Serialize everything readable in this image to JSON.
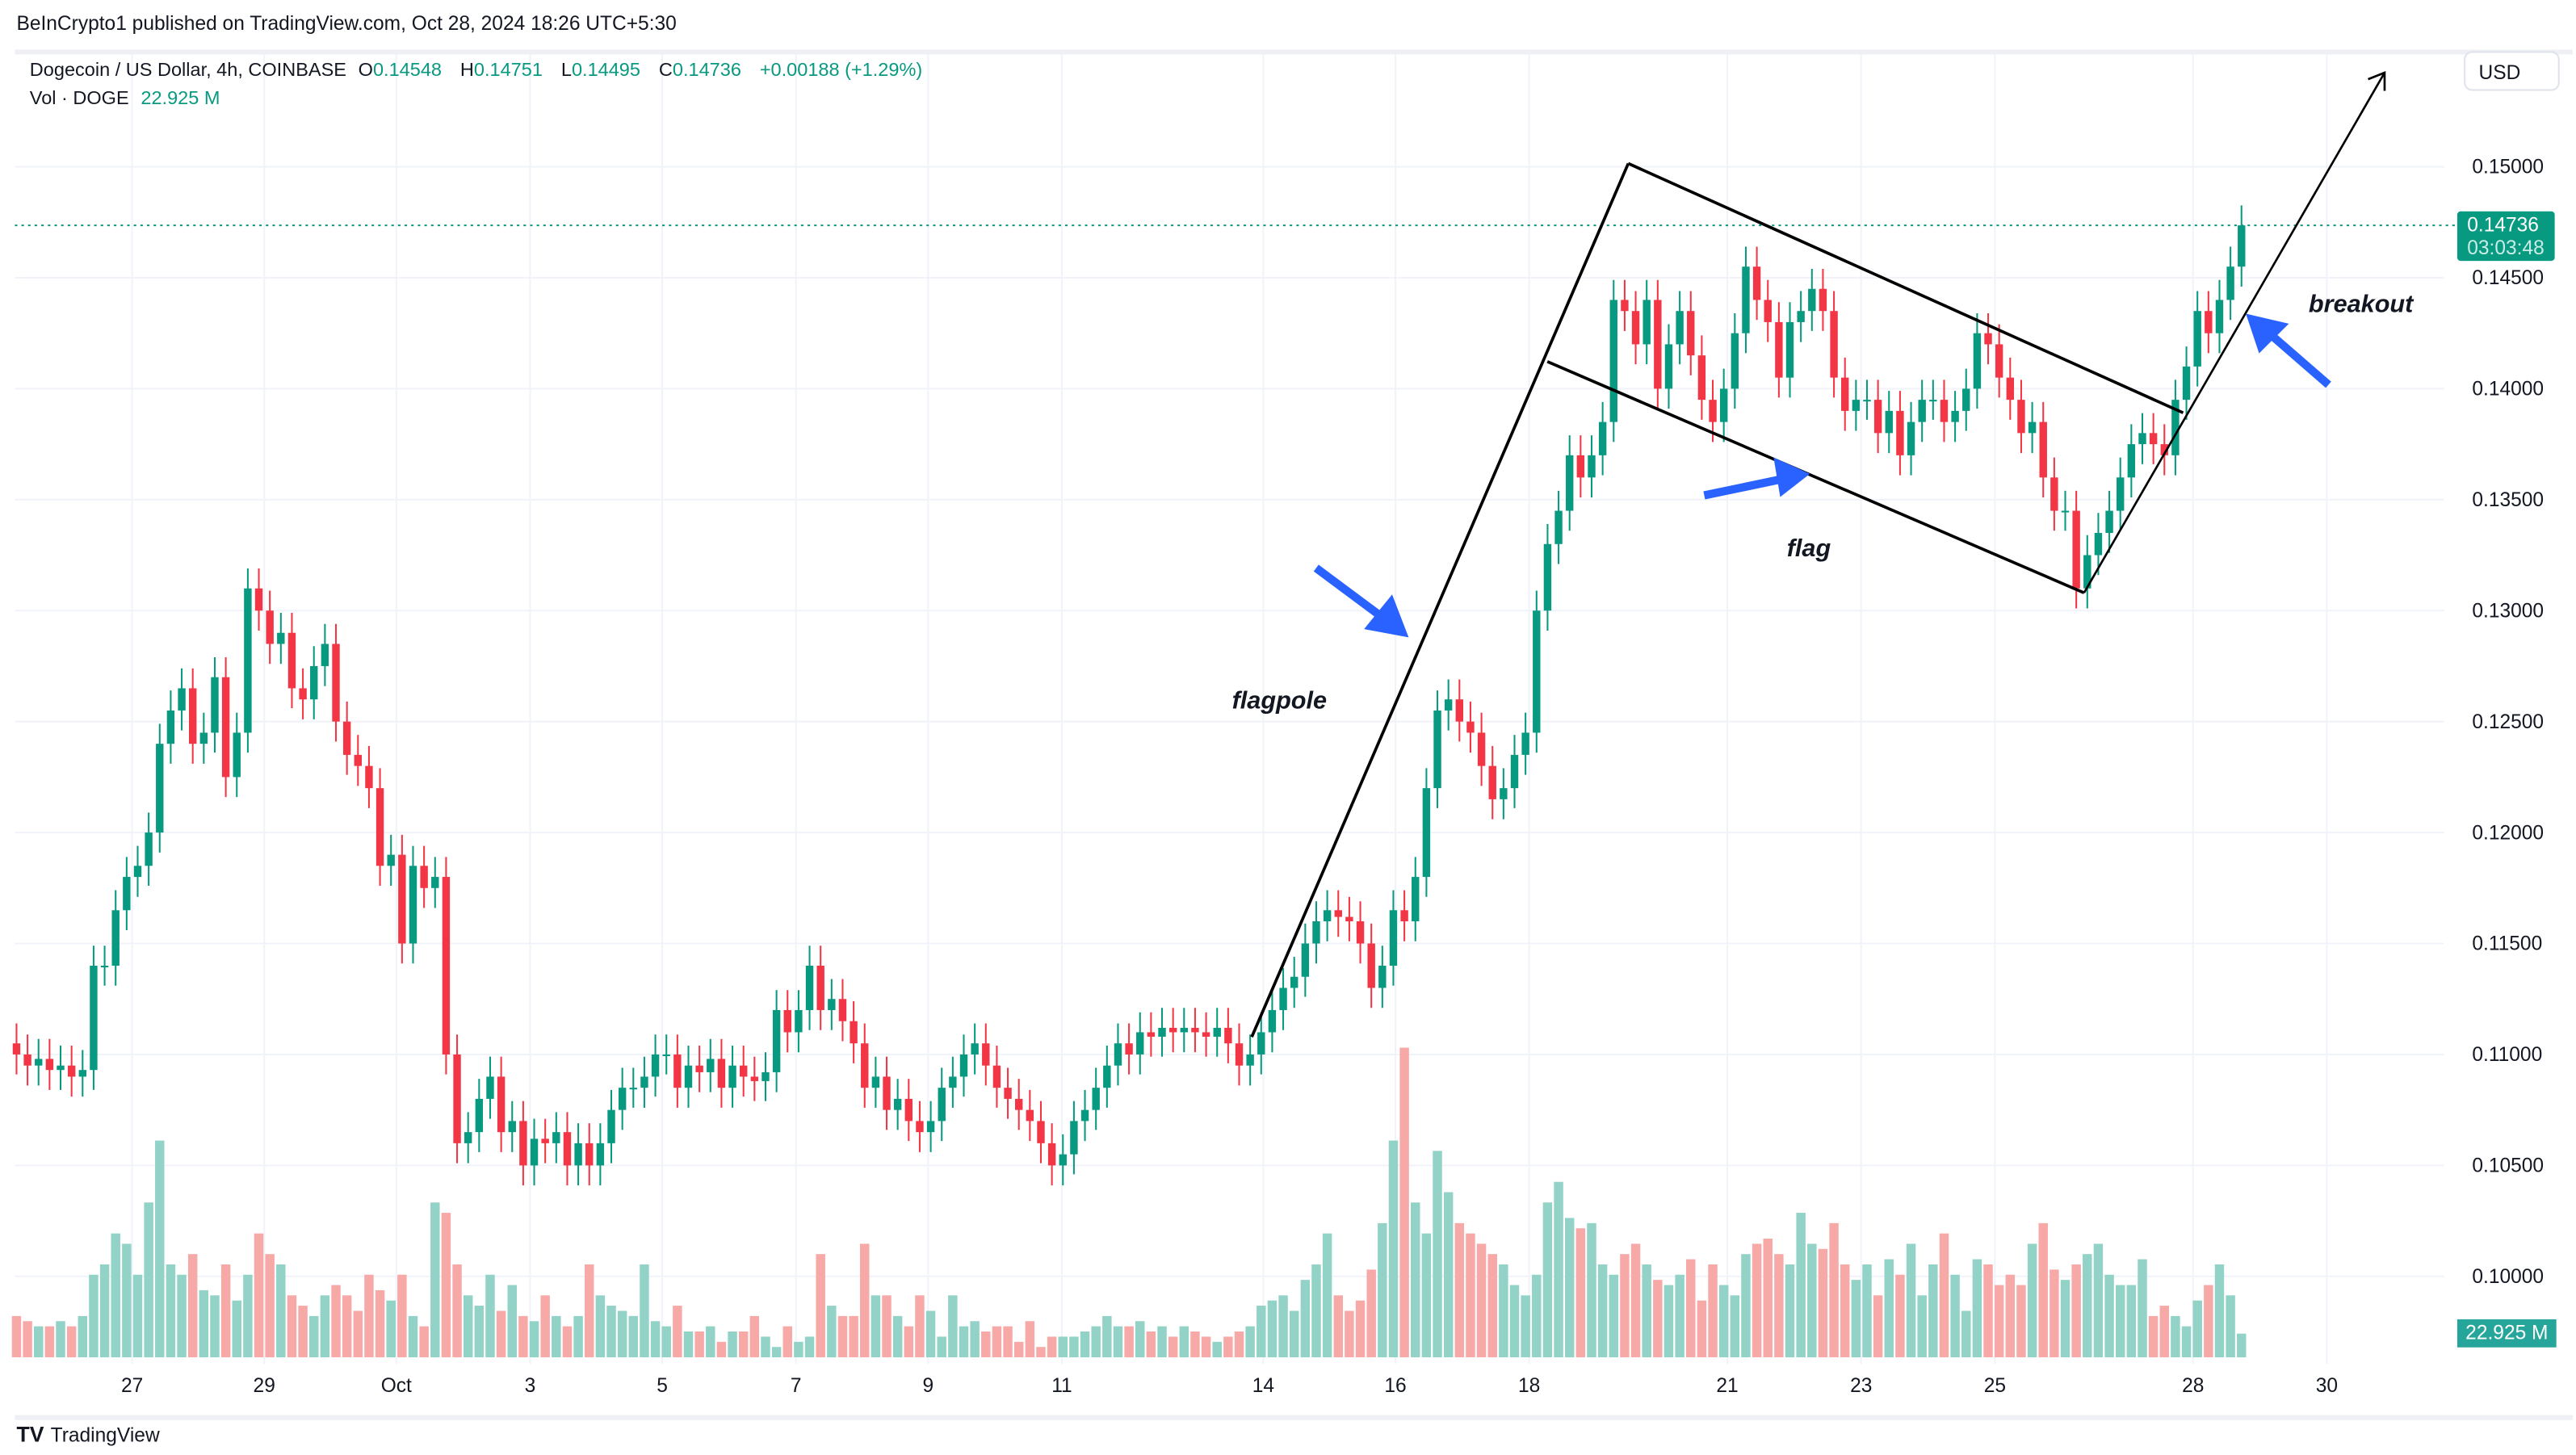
{
  "header": {
    "published": "BeInCrypto1 published on TradingView.com, Oct 28, 2024 18:26 UTC+5:30"
  },
  "legend": {
    "symbol": "Dogecoin / US Dollar, 4h, COINBASE",
    "o_label": "O",
    "o": "0.14548",
    "h_label": "H",
    "h": "0.14751",
    "l_label": "L",
    "l": "0.14495",
    "c_label": "C",
    "c": "0.14736",
    "change": "+0.00188 (+1.29%)",
    "vol_label": "Vol · DOGE",
    "vol": "22.925 M"
  },
  "price_axis": {
    "currency": "USD",
    "last_price": "0.14736",
    "countdown": "03:03:48",
    "volume_tag": "22.925 M"
  },
  "footer": {
    "brand": "TradingView"
  },
  "annotations": {
    "flagpole": "flagpole",
    "flag": "flag",
    "breakout": "breakout"
  },
  "colors": {
    "up": "#089981",
    "down": "#f23645",
    "vol_up": "#92d2c7",
    "vol_down": "#f7a9a7",
    "arrow": "#2962ff"
  },
  "chart_data": {
    "type": "candlestick",
    "interval": "4h",
    "ylim": [
      0.1,
      0.15
    ],
    "y_ticks": [
      "0.15000",
      "0.14500",
      "0.14000",
      "0.13500",
      "0.13000",
      "0.12500",
      "0.12000",
      "0.11500",
      "0.11000",
      "0.10500",
      "0.10000"
    ],
    "x_ticks": [
      "27",
      "29",
      "Oct",
      "3",
      "5",
      "7",
      "9",
      "11",
      "14",
      "16",
      "18",
      "21",
      "23",
      "25",
      "28",
      "30"
    ],
    "first_open": 0.1105,
    "close": [
      0.11,
      0.1095,
      0.1098,
      0.1093,
      0.1095,
      0.109,
      0.1093,
      0.114,
      0.114,
      0.1165,
      0.118,
      0.1185,
      0.12,
      0.124,
      0.1255,
      0.1265,
      0.124,
      0.1245,
      0.127,
      0.1225,
      0.1245,
      0.131,
      0.13,
      0.1285,
      0.129,
      0.1265,
      0.126,
      0.1275,
      0.1285,
      0.125,
      0.1235,
      0.123,
      0.122,
      0.1185,
      0.119,
      0.115,
      0.1185,
      0.1175,
      0.118,
      0.11,
      0.106,
      0.1065,
      0.108,
      0.109,
      0.1065,
      0.107,
      0.105,
      0.1062,
      0.106,
      0.1065,
      0.105,
      0.106,
      0.105,
      0.106,
      0.1075,
      0.1085,
      0.1085,
      0.109,
      0.11,
      0.11,
      0.1085,
      0.1095,
      0.1092,
      0.1098,
      0.1085,
      0.1095,
      0.109,
      0.1088,
      0.1092,
      0.112,
      0.111,
      0.112,
      0.114,
      0.112,
      0.1125,
      0.1115,
      0.1105,
      0.1085,
      0.109,
      0.1075,
      0.108,
      0.107,
      0.1065,
      0.107,
      0.1085,
      0.109,
      0.11,
      0.1105,
      0.1095,
      0.1085,
      0.108,
      0.1075,
      0.107,
      0.106,
      0.105,
      0.1055,
      0.107,
      0.1075,
      0.1085,
      0.1095,
      0.1105,
      0.11,
      0.111,
      0.1108,
      0.1112,
      0.111,
      0.1112,
      0.111,
      0.1108,
      0.1112,
      0.1105,
      0.1095,
      0.11,
      0.111,
      0.112,
      0.113,
      0.1135,
      0.115,
      0.116,
      0.1165,
      0.1162,
      0.116,
      0.115,
      0.113,
      0.114,
      0.1165,
      0.116,
      0.118,
      0.122,
      0.1255,
      0.126,
      0.125,
      0.1245,
      0.123,
      0.1215,
      0.122,
      0.1235,
      0.1245,
      0.13,
      0.133,
      0.1345,
      0.137,
      0.136,
      0.137,
      0.1385,
      0.144,
      0.1435,
      0.142,
      0.144,
      0.14,
      0.142,
      0.1435,
      0.1415,
      0.1395,
      0.1385,
      0.14,
      0.1425,
      0.1455,
      0.144,
      0.143,
      0.1405,
      0.143,
      0.1435,
      0.1445,
      0.1435,
      0.1405,
      0.139,
      0.1395,
      0.1395,
      0.138,
      0.139,
      0.137,
      0.1385,
      0.1395,
      0.1395,
      0.1385,
      0.139,
      0.14,
      0.1425,
      0.142,
      0.1405,
      0.1395,
      0.138,
      0.1385,
      0.136,
      0.1345,
      0.1345,
      0.131,
      0.1325,
      0.1335,
      0.1345,
      0.136,
      0.1375,
      0.138,
      0.1375,
      0.137,
      0.1395,
      0.141,
      0.1435,
      0.1425,
      0.144,
      0.1455,
      0.14736
    ],
    "volume_millions": [
      40,
      35,
      30,
      30,
      35,
      30,
      40,
      80,
      90,
      120,
      110,
      80,
      150,
      210,
      90,
      80,
      100,
      65,
      60,
      90,
      55,
      80,
      120,
      100,
      90,
      60,
      50,
      40,
      60,
      70,
      60,
      45,
      80,
      65,
      55,
      80,
      40,
      30,
      150,
      140,
      90,
      60,
      50,
      80,
      45,
      70,
      40,
      35,
      60,
      40,
      30,
      40,
      90,
      60,
      50,
      45,
      40,
      90,
      35,
      30,
      50,
      25,
      25,
      30,
      15,
      25,
      25,
      40,
      20,
      10,
      30,
      15,
      20,
      100,
      50,
      40,
      40,
      110,
      60,
      60,
      40,
      30,
      60,
      45,
      20,
      60,
      30,
      35,
      25,
      30,
      30,
      15,
      35,
      10,
      20,
      20,
      20,
      25,
      30,
      40,
      30,
      30,
      35,
      25,
      30,
      20,
      30,
      25,
      20,
      15,
      20,
      25,
      30,
      50,
      55,
      60,
      45,
      75,
      90,
      120,
      60,
      45,
      55,
      85,
      130,
      210,
      300,
      150,
      120,
      200,
      160,
      130,
      120,
      110,
      100,
      90,
      70,
      60,
      80,
      150,
      170,
      135,
      125,
      130,
      90,
      80,
      100,
      110,
      90,
      75,
      70,
      80,
      95,
      55,
      90,
      70,
      60,
      100,
      110,
      115,
      100,
      90,
      140,
      110,
      105,
      130,
      90,
      75,
      90,
      60,
      95,
      80,
      110,
      60,
      90,
      120,
      80,
      45,
      95,
      90,
      70,
      80,
      70,
      110,
      130,
      85,
      75,
      90,
      100,
      110,
      80,
      70,
      70,
      95,
      40,
      50,
      40,
      30,
      55,
      70,
      90,
      60,
      22.925
    ]
  }
}
